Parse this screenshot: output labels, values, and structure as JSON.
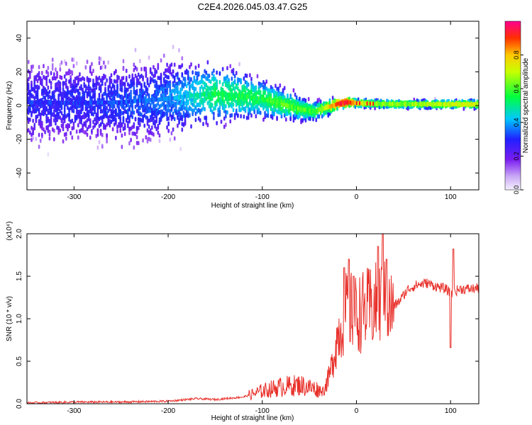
{
  "title": "C2E4.2026.045.03.47.G25",
  "colors": {
    "snr_line": "#e8302a",
    "axis": "#000000",
    "ridge_red": "#ff1a1a"
  },
  "chart_data": [
    {
      "type": "heatmap",
      "name": "spectrogram",
      "title": "C2E4.2026.045.03.47.G25",
      "xlabel": "Height of straight line (km)",
      "ylabel": "Frequency (Hz)",
      "xlim": [
        -350,
        130
      ],
      "ylim": [
        -50,
        50
      ],
      "xticks": [
        -300,
        -200,
        -100,
        0,
        100
      ],
      "yticks": [
        -40,
        -20,
        0,
        20,
        40
      ],
      "colorbar": {
        "label": "Normalized spectral amplitude",
        "range": [
          0,
          1
        ],
        "ticks": [
          "0.0",
          "0.2",
          "0.4",
          "0.6",
          "0.8"
        ],
        "tick_values": [
          0,
          0.2,
          0.4,
          0.6,
          0.8
        ]
      },
      "ridge": {
        "x": [
          -350,
          -300,
          -250,
          -200,
          -175,
          -150,
          -125,
          -100,
          -80,
          -60,
          -45,
          -30,
          -20,
          -10,
          0,
          20,
          60,
          100,
          130
        ],
        "freq": [
          2,
          1.5,
          2,
          4,
          6,
          7,
          6,
          4,
          1,
          -2,
          -3.5,
          -1,
          1,
          2,
          1.5,
          1,
          0.8,
          0.8,
          0.8
        ],
        "amplitude": [
          0.25,
          0.25,
          0.28,
          0.32,
          0.4,
          0.5,
          0.5,
          0.5,
          0.55,
          0.55,
          0.55,
          0.7,
          0.85,
          0.9,
          0.7,
          0.6,
          0.6,
          0.65,
          0.65
        ]
      }
    },
    {
      "type": "line",
      "name": "snr",
      "xlabel": "Height of straight line (km)",
      "ylabel": "SNR (10 * v/v)",
      "y_multiplier_label": "(x10⁴)",
      "xlim": [
        -350,
        130
      ],
      "ylim": [
        0,
        2.0
      ],
      "xticks": [
        -300,
        -200,
        -100,
        0,
        100
      ],
      "yticks": [
        "0.0",
        "0.5",
        "1.0",
        "1.5",
        "2.0"
      ],
      "ytick_values": [
        0,
        0.5,
        1.0,
        1.5,
        2.0
      ],
      "series": [
        {
          "name": "SNR",
          "x": [
            -350,
            -300,
            -250,
            -200,
            -170,
            -150,
            -120,
            -100,
            -80,
            -60,
            -45,
            -35,
            -28,
            -20,
            -10,
            0,
            10,
            20,
            28,
            35,
            45,
            55,
            65,
            75,
            85,
            95,
            100,
            110,
            120,
            130
          ],
          "values": [
            0.01,
            0.02,
            0.02,
            0.03,
            0.06,
            0.05,
            0.08,
            0.15,
            0.2,
            0.22,
            0.18,
            0.15,
            0.35,
            0.8,
            1.1,
            1.05,
            1.1,
            1.15,
            1.2,
            1.1,
            1.2,
            1.35,
            1.4,
            1.42,
            1.38,
            1.35,
            1.3,
            1.35,
            1.35,
            1.36
          ]
        }
      ],
      "spikes": [
        {
          "x": -13,
          "y": 1.6
        },
        {
          "x": -8,
          "y": 1.7
        },
        {
          "x": -3,
          "y": 1.5
        },
        {
          "x": 23,
          "y": 1.85
        },
        {
          "x": 28,
          "y": 2.0
        },
        {
          "x": 32,
          "y": 1.7
        },
        {
          "x": 100,
          "y": 0.66
        },
        {
          "x": 103,
          "y": 1.82
        }
      ]
    }
  ]
}
